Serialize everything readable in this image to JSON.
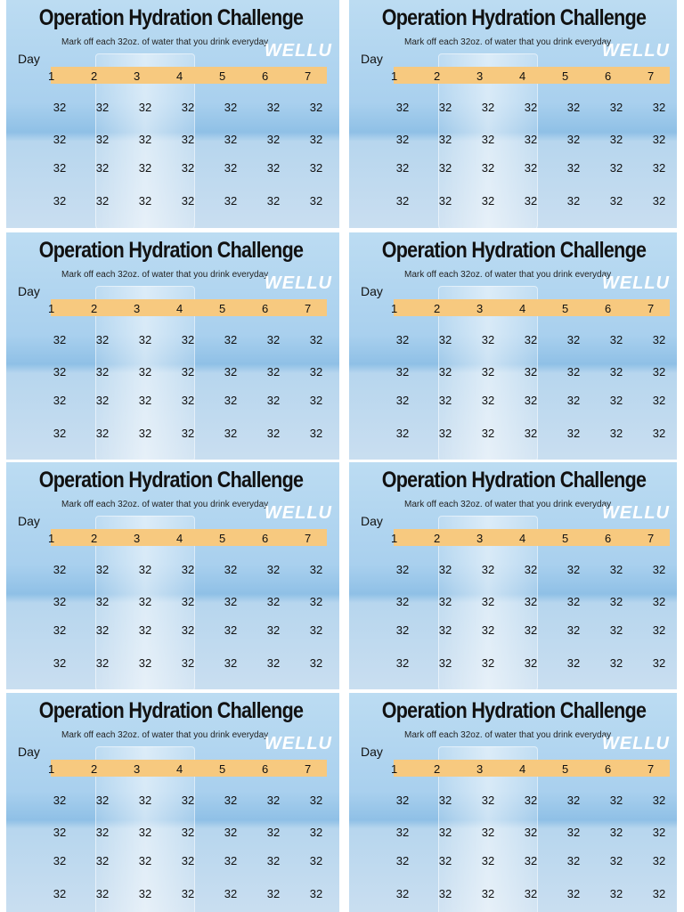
{
  "cards": [
    {
      "title": "Operation Hydration Challenge",
      "subtitle": "Mark off each 32oz. of water that you drink  everyday",
      "logo": "WELLU",
      "day_label": "Day",
      "days": [
        "1",
        "2",
        "3",
        "4",
        "5",
        "6",
        "7"
      ],
      "rows": [
        [
          "32",
          "32",
          "32",
          "32",
          "32",
          "32",
          "32"
        ],
        [
          "32",
          "32",
          "32",
          "32",
          "32",
          "32",
          "32"
        ],
        [
          "32",
          "32",
          "32",
          "32",
          "32",
          "32",
          "32"
        ],
        [
          "32",
          "32",
          "32",
          "32",
          "32",
          "32",
          "32"
        ]
      ]
    },
    {
      "title": "Operation Hydration Challenge",
      "subtitle": "Mark off each 32oz. of water that you drink  everyday",
      "logo": "WELLU",
      "day_label": "Day",
      "days": [
        "1",
        "2",
        "3",
        "4",
        "5",
        "6",
        "7"
      ],
      "rows": [
        [
          "32",
          "32",
          "32",
          "32",
          "32",
          "32",
          "32"
        ],
        [
          "32",
          "32",
          "32",
          "32",
          "32",
          "32",
          "32"
        ],
        [
          "32",
          "32",
          "32",
          "32",
          "32",
          "32",
          "32"
        ],
        [
          "32",
          "32",
          "32",
          "32",
          "32",
          "32",
          "32"
        ]
      ]
    },
    {
      "title": "Operation Hydration Challenge",
      "subtitle": "Mark off each 32oz. of water that you drink  everyday",
      "logo": "WELLU",
      "day_label": "Day",
      "days": [
        "1",
        "2",
        "3",
        "4",
        "5",
        "6",
        "7"
      ],
      "rows": [
        [
          "32",
          "32",
          "32",
          "32",
          "32",
          "32",
          "32"
        ],
        [
          "32",
          "32",
          "32",
          "32",
          "32",
          "32",
          "32"
        ],
        [
          "32",
          "32",
          "32",
          "32",
          "32",
          "32",
          "32"
        ],
        [
          "32",
          "32",
          "32",
          "32",
          "32",
          "32",
          "32"
        ]
      ]
    },
    {
      "title": "Operation Hydration Challenge",
      "subtitle": "Mark off each 32oz. of water that you drink  everyday",
      "logo": "WELLU",
      "day_label": "Day",
      "days": [
        "1",
        "2",
        "3",
        "4",
        "5",
        "6",
        "7"
      ],
      "rows": [
        [
          "32",
          "32",
          "32",
          "32",
          "32",
          "32",
          "32"
        ],
        [
          "32",
          "32",
          "32",
          "32",
          "32",
          "32",
          "32"
        ],
        [
          "32",
          "32",
          "32",
          "32",
          "32",
          "32",
          "32"
        ],
        [
          "32",
          "32",
          "32",
          "32",
          "32",
          "32",
          "32"
        ]
      ]
    },
    {
      "title": "Operation Hydration Challenge",
      "subtitle": "Mark off each 32oz. of water that you drink  everyday",
      "logo": "WELLU",
      "day_label": "Day",
      "days": [
        "1",
        "2",
        "3",
        "4",
        "5",
        "6",
        "7"
      ],
      "rows": [
        [
          "32",
          "32",
          "32",
          "32",
          "32",
          "32",
          "32"
        ],
        [
          "32",
          "32",
          "32",
          "32",
          "32",
          "32",
          "32"
        ],
        [
          "32",
          "32",
          "32",
          "32",
          "32",
          "32",
          "32"
        ],
        [
          "32",
          "32",
          "32",
          "32",
          "32",
          "32",
          "32"
        ]
      ]
    },
    {
      "title": "Operation Hydration Challenge",
      "subtitle": "Mark off each 32oz. of water that you drink  everyday",
      "logo": "WELLU",
      "day_label": "Day",
      "days": [
        "1",
        "2",
        "3",
        "4",
        "5",
        "6",
        "7"
      ],
      "rows": [
        [
          "32",
          "32",
          "32",
          "32",
          "32",
          "32",
          "32"
        ],
        [
          "32",
          "32",
          "32",
          "32",
          "32",
          "32",
          "32"
        ],
        [
          "32",
          "32",
          "32",
          "32",
          "32",
          "32",
          "32"
        ],
        [
          "32",
          "32",
          "32",
          "32",
          "32",
          "32",
          "32"
        ]
      ]
    },
    {
      "title": "Operation Hydration Challenge",
      "subtitle": "Mark off each 32oz. of water that you drink  everyday",
      "logo": "WELLU",
      "day_label": "Day",
      "days": [
        "1",
        "2",
        "3",
        "4",
        "5",
        "6",
        "7"
      ],
      "rows": [
        [
          "32",
          "32",
          "32",
          "32",
          "32",
          "32",
          "32"
        ],
        [
          "32",
          "32",
          "32",
          "32",
          "32",
          "32",
          "32"
        ],
        [
          "32",
          "32",
          "32",
          "32",
          "32",
          "32",
          "32"
        ],
        [
          "32",
          "32",
          "32",
          "32",
          "32",
          "32",
          "32"
        ]
      ]
    },
    {
      "title": "Operation Hydration Challenge",
      "subtitle": "Mark off each 32oz. of water that you drink  everyday",
      "logo": "WELLU",
      "day_label": "Day",
      "days": [
        "1",
        "2",
        "3",
        "4",
        "5",
        "6",
        "7"
      ],
      "rows": [
        [
          "32",
          "32",
          "32",
          "32",
          "32",
          "32",
          "32"
        ],
        [
          "32",
          "32",
          "32",
          "32",
          "32",
          "32",
          "32"
        ],
        [
          "32",
          "32",
          "32",
          "32",
          "32",
          "32",
          "32"
        ],
        [
          "32",
          "32",
          "32",
          "32",
          "32",
          "32",
          "32"
        ]
      ]
    }
  ]
}
